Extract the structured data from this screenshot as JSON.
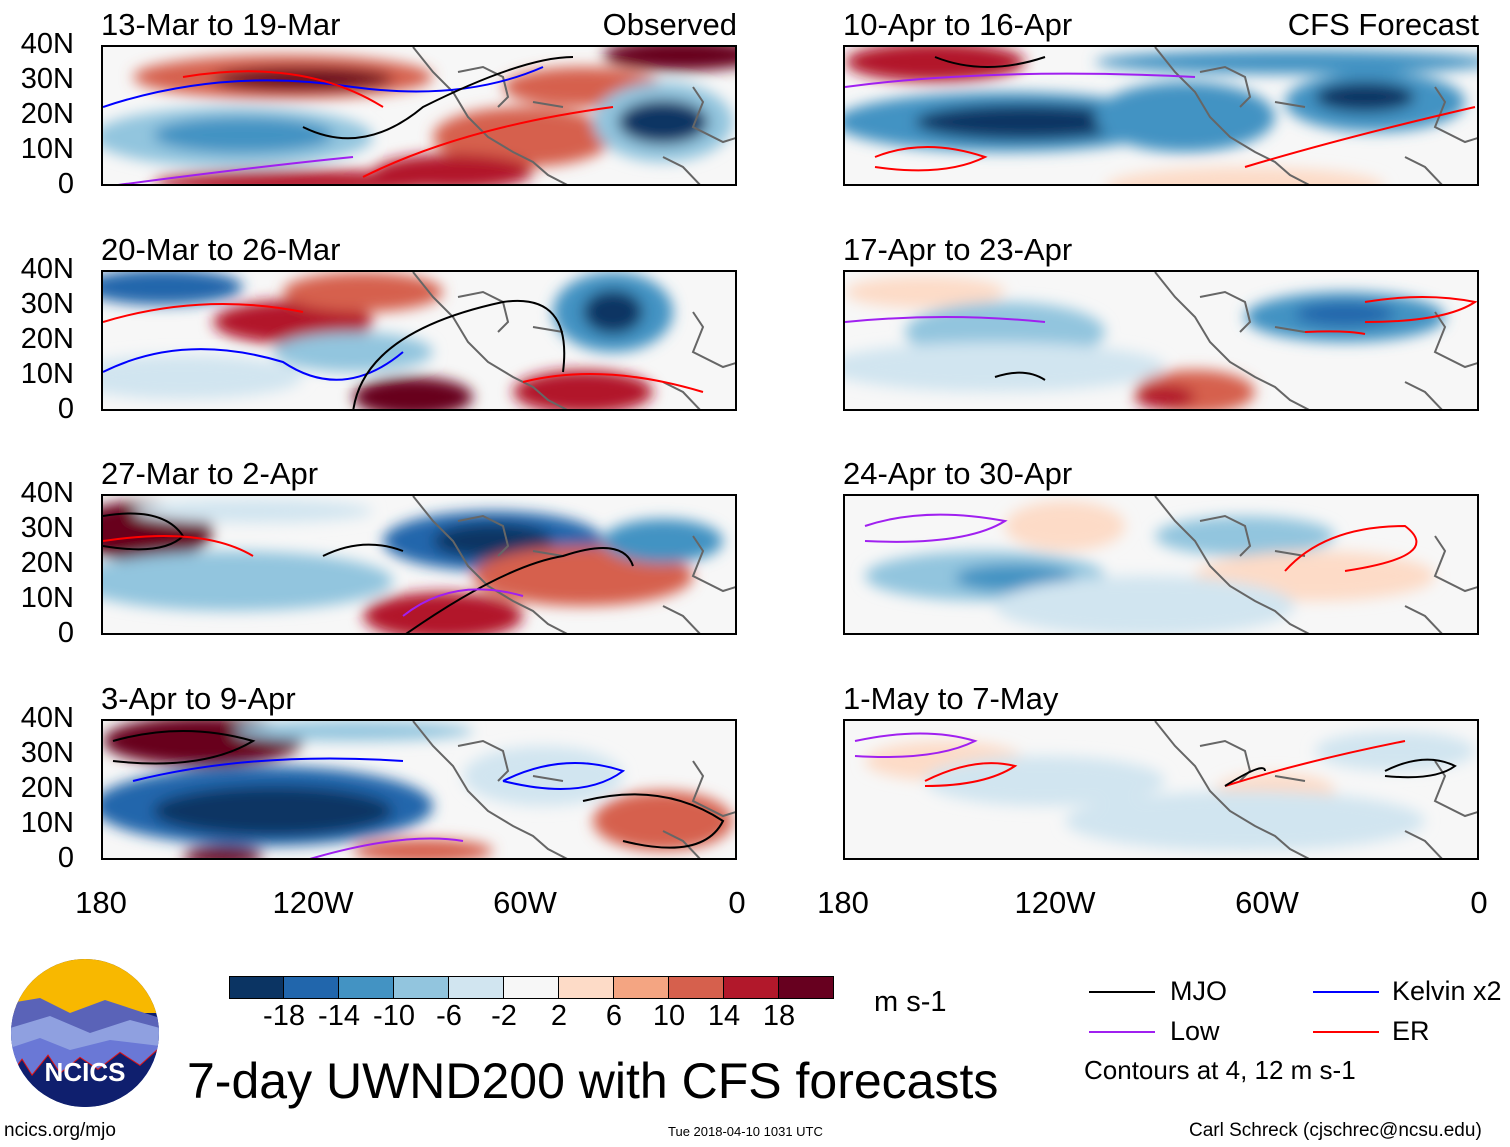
{
  "panels": [
    {
      "title": "13-Mar to 19-Mar",
      "tag": "Observed"
    },
    {
      "title": "20-Mar to 26-Mar"
    },
    {
      "title": "27-Mar to 2-Apr"
    },
    {
      "title": "3-Apr to 9-Apr"
    },
    {
      "title": "10-Apr to 16-Apr",
      "tag": "CFS Forecast"
    },
    {
      "title": "17-Apr to 23-Apr"
    },
    {
      "title": "24-Apr to 30-Apr"
    },
    {
      "title": "1-May to 7-May"
    }
  ],
  "lat_labels": [
    "40N",
    "30N",
    "20N",
    "10N",
    "0"
  ],
  "lon_labels": [
    "180",
    "120W",
    "60W",
    "0"
  ],
  "colorbar": {
    "colors": [
      "#0b3463",
      "#2166ac",
      "#4393c3",
      "#92c5de",
      "#d1e5f0",
      "#f7f7f7",
      "#fddbc7",
      "#f4a582",
      "#d6604d",
      "#b2182b",
      "#67001f"
    ],
    "labels": [
      "-18",
      "-14",
      "-10",
      "-6",
      "-2",
      "2",
      "6",
      "10",
      "14",
      "18"
    ],
    "units": "m s-1"
  },
  "legend": {
    "items": [
      {
        "label": "MJO",
        "color": "#000000"
      },
      {
        "label": "Kelvin x2",
        "color": "#0000ff"
      },
      {
        "label": "Low",
        "color": "#a020f0"
      },
      {
        "label": "ER",
        "color": "#ff0000"
      }
    ],
    "note": "Contours at 4, 12 m s-1"
  },
  "logo_text": "NCICS",
  "title": "7-day UWND200 with CFS forecasts",
  "footer": {
    "left": "ncics.org/mjo",
    "center": "Tue 2018-04-10 1031 UTC",
    "right": "Carl Schreck (cjschrec@ncsu.edu)"
  }
}
